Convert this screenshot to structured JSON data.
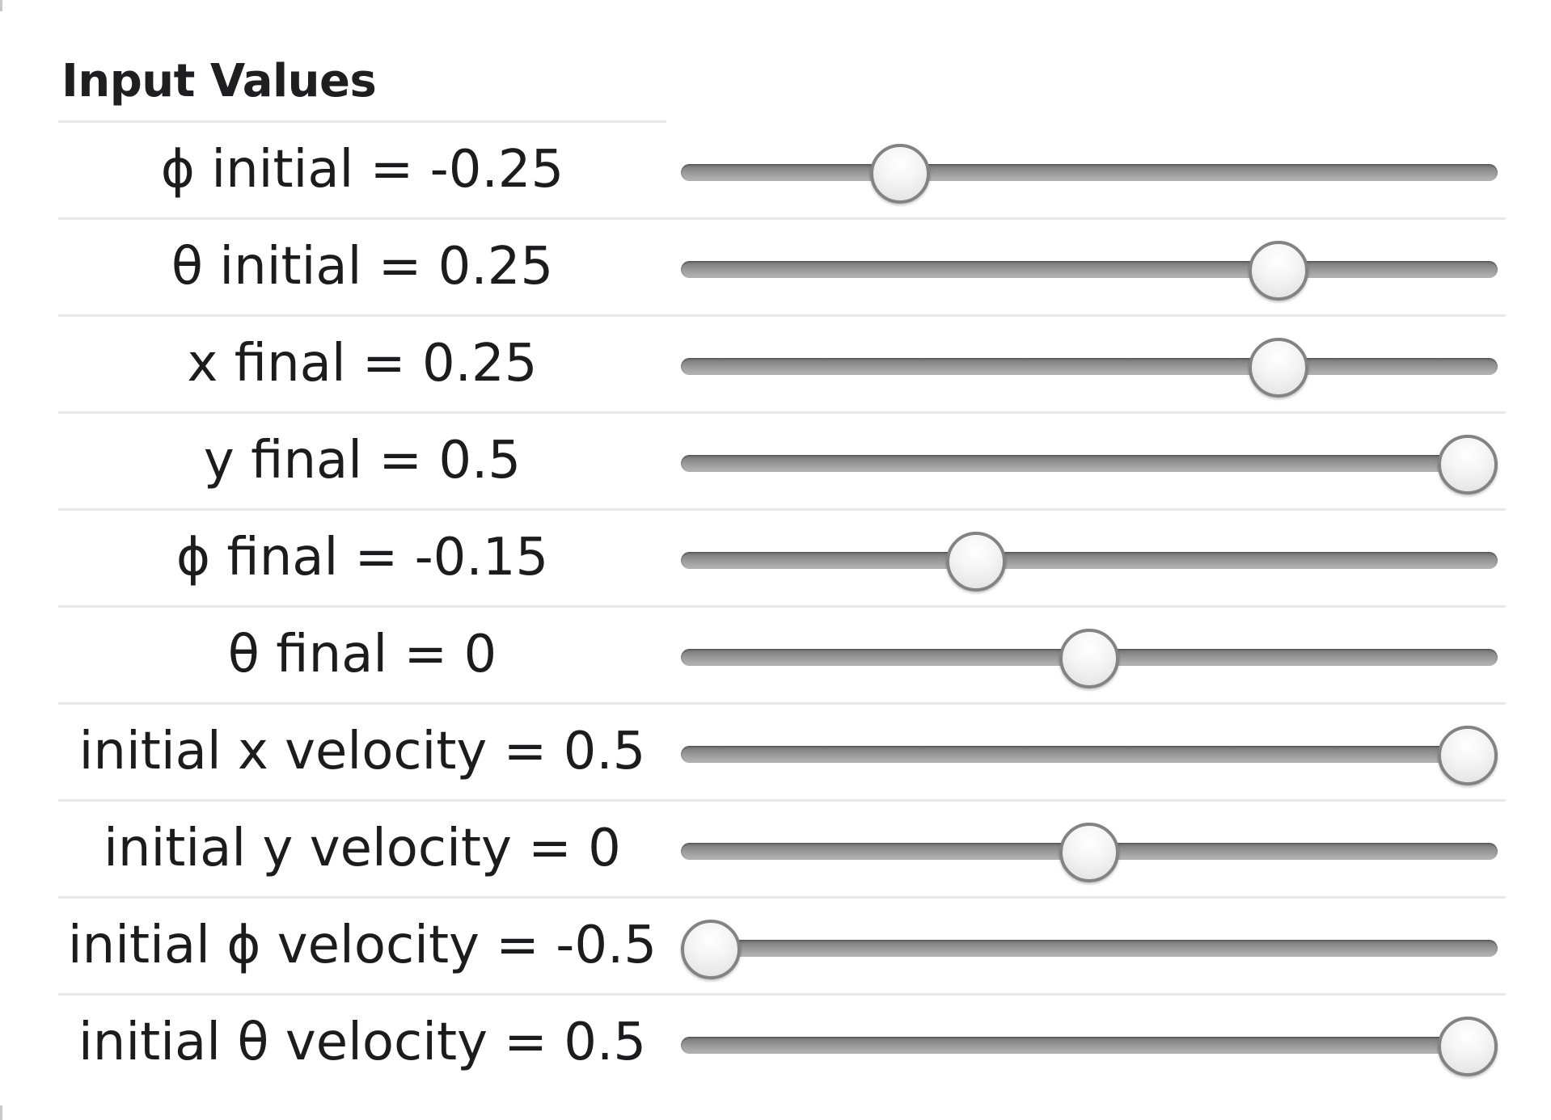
{
  "panel": {
    "title": "Input Values"
  },
  "sliders": [
    {
      "label": "ϕ initial = -0.25",
      "min": -0.5,
      "max": 0.5,
      "value": -0.25
    },
    {
      "label": "θ initial = 0.25",
      "min": -0.5,
      "max": 0.5,
      "value": 0.25
    },
    {
      "label": "x final = 0.25",
      "min": -0.5,
      "max": 0.5,
      "value": 0.25
    },
    {
      "label": "y final = 0.5",
      "min": -0.5,
      "max": 0.5,
      "value": 0.5
    },
    {
      "label": "ϕ final = -0.15",
      "min": -0.5,
      "max": 0.5,
      "value": -0.15
    },
    {
      "label": "θ final = 0",
      "min": -0.5,
      "max": 0.5,
      "value": 0
    },
    {
      "label": "initial x velocity = 0.5",
      "min": -0.5,
      "max": 0.5,
      "value": 0.5
    },
    {
      "label": "initial y velocity = 0",
      "min": -0.5,
      "max": 0.5,
      "value": 0
    },
    {
      "label": "initial ϕ velocity = -0.5",
      "min": -0.5,
      "max": 0.5,
      "value": -0.5
    },
    {
      "label": "initial θ velocity = 0.5",
      "min": -0.5,
      "max": 0.5,
      "value": 0.5
    }
  ]
}
